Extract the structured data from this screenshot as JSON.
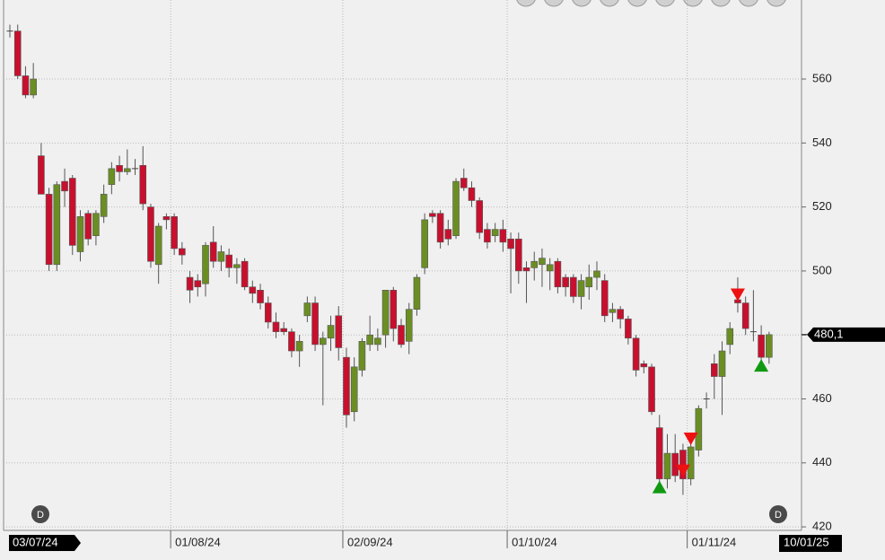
{
  "chart_data": {
    "type": "candlestick",
    "categories": [
      "03/07/24",
      null,
      null,
      null,
      null,
      null,
      null,
      null,
      null,
      null,
      null,
      null,
      null,
      null,
      null,
      null,
      null,
      null,
      null,
      null,
      null,
      "01/08/24",
      null,
      null,
      null,
      null,
      null,
      null,
      null,
      null,
      null,
      null,
      null,
      null,
      null,
      null,
      null,
      null,
      null,
      null,
      null,
      null,
      null,
      "02/09/24",
      null,
      null,
      null,
      null,
      null,
      null,
      null,
      null,
      null,
      null,
      null,
      null,
      null,
      null,
      null,
      null,
      null,
      null,
      null,
      null,
      "01/10/24",
      null,
      null,
      null,
      null,
      null,
      null,
      null,
      null,
      null,
      null,
      null,
      null,
      null,
      null,
      null,
      null,
      null,
      null,
      null,
      null,
      null,
      null,
      "01/11/24",
      null,
      null,
      null,
      null,
      null,
      null,
      null,
      null,
      null,
      null
    ],
    "open": [
      575,
      575,
      561,
      555,
      536,
      524,
      502,
      528,
      529,
      506,
      518,
      511,
      517,
      527,
      533,
      531,
      532,
      533,
      520,
      502,
      517,
      517,
      507,
      498,
      497,
      496,
      509,
      503,
      505,
      501,
      503,
      495,
      494,
      490,
      484,
      482,
      481,
      475,
      486,
      490,
      477,
      479,
      486,
      473,
      456,
      469,
      477,
      477,
      480,
      494,
      483,
      478,
      488,
      501,
      518,
      518,
      513,
      511,
      529,
      526,
      522,
      513,
      511,
      513,
      510,
      510,
      501,
      501,
      502,
      500,
      503,
      498,
      498,
      492,
      495,
      498,
      497,
      487,
      488,
      485,
      479,
      471,
      470,
      451,
      435,
      443,
      444,
      435,
      444,
      460,
      471,
      467,
      477,
      491,
      490,
      481,
      480,
      473
    ],
    "high": [
      577,
      577,
      564,
      565,
      540,
      526,
      528,
      532,
      530,
      519,
      519,
      519,
      527,
      534,
      536,
      538,
      535,
      539,
      521,
      515,
      518,
      518,
      509,
      500,
      499,
      509,
      514,
      508,
      507,
      504,
      504,
      497,
      496,
      492,
      487,
      484,
      482,
      480,
      492,
      492,
      481,
      486,
      489,
      476,
      473,
      479,
      486,
      482,
      494,
      495,
      485,
      490,
      499,
      518,
      519,
      519,
      516,
      529,
      532,
      528,
      523,
      515,
      515,
      516,
      512,
      512,
      503,
      506,
      507,
      504,
      504,
      499,
      499,
      499,
      502,
      503,
      499,
      490,
      489,
      486,
      480,
      472,
      471,
      455,
      449,
      449,
      446,
      448,
      458,
      462,
      474,
      478,
      484,
      498,
      492,
      494,
      483,
      481
    ],
    "low": [
      573,
      560,
      554,
      554,
      524,
      500,
      500,
      520,
      505,
      503,
      508,
      508,
      515,
      524,
      528,
      530,
      530,
      519,
      501,
      496,
      513,
      505,
      502,
      490,
      492,
      492,
      501,
      500,
      498,
      496,
      494,
      490,
      488,
      482,
      479,
      480,
      473,
      470,
      484,
      475,
      458,
      475,
      472,
      451,
      453,
      467,
      475,
      475,
      476,
      478,
      476,
      474,
      486,
      499,
      515,
      507,
      508,
      510,
      525,
      520,
      510,
      507,
      509,
      506,
      493,
      496,
      490,
      497,
      495,
      494,
      493,
      492,
      490,
      488,
      491,
      494,
      484,
      484,
      482,
      477,
      467,
      468,
      455,
      432,
      432,
      434,
      430,
      433,
      442,
      457,
      460,
      455,
      474,
      487,
      480,
      478,
      471,
      471
    ],
    "close": [
      575,
      561,
      555,
      560,
      524,
      502,
      527,
      525,
      508,
      517,
      510,
      518,
      524,
      532,
      531,
      532,
      532,
      521,
      503,
      514,
      516,
      507,
      505,
      494,
      495,
      508,
      503,
      506,
      501,
      502,
      495,
      493,
      490,
      484,
      481,
      481,
      475,
      478,
      490,
      477,
      479,
      483,
      476,
      455,
      470,
      478,
      480,
      479,
      494,
      482,
      477,
      488,
      498,
      516,
      517,
      509,
      510,
      528,
      526,
      522,
      512,
      509,
      513,
      509,
      507,
      500,
      500,
      503,
      504,
      502,
      495,
      495,
      492,
      497,
      498,
      500,
      486,
      488,
      485,
      479,
      469,
      470,
      456,
      435,
      443,
      436,
      435,
      445,
      457,
      460,
      467,
      475,
      482,
      490,
      482,
      481,
      473,
      480.1
    ],
    "up_color": "#6b8e23",
    "down_color": "#c8102e",
    "signals": [
      {
        "index": 83,
        "type": "buy"
      },
      {
        "index": 86,
        "type": "sell"
      },
      {
        "index": 87,
        "type": "sell"
      },
      {
        "index": 93,
        "type": "sell"
      },
      {
        "index": 96,
        "type": "buy"
      }
    ],
    "buy_color": "#119911",
    "sell_color": "#ee1111",
    "last_price": {
      "value": 480.1,
      "label": "480,1"
    },
    "cursor_date": "10/01/25",
    "badges": [
      "D",
      "D"
    ],
    "ylim": [
      418.9,
      584.7
    ],
    "yticks": [
      420,
      440,
      460,
      480,
      500,
      520,
      540,
      560
    ],
    "grid": true
  }
}
